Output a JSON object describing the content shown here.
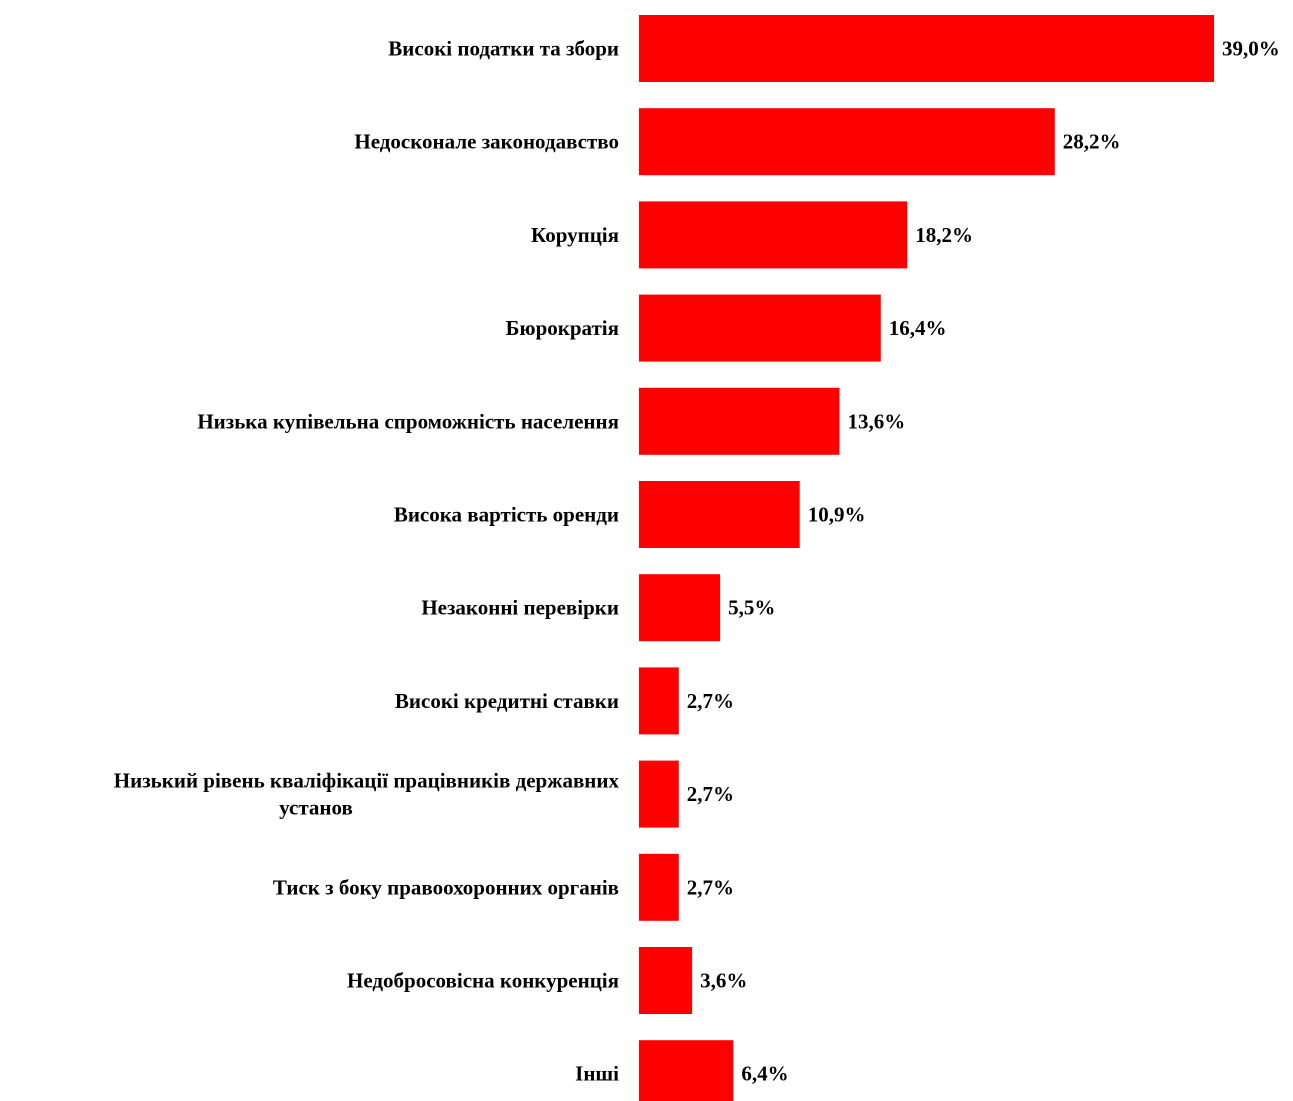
{
  "chart_data": {
    "type": "bar",
    "orientation": "horizontal",
    "categories": [
      "Високі податки та збори",
      "Недосконале законодавство",
      "Корупція",
      "Бюрократія",
      "Низька купівельна спроможність населення",
      "Висока вартість оренди",
      "Незаконні перевірки",
      "Високі кредитні ставки",
      "Низький рівень кваліфікації працівників державних установ",
      "Тиск з боку правоохоронних органів",
      "Недобросовісна конкуренція",
      "Інші"
    ],
    "category_lines": [
      [
        "Високі податки та збори"
      ],
      [
        "Недосконале законодавство"
      ],
      [
        "Корупція"
      ],
      [
        "Бюрократія"
      ],
      [
        "Низька купівельна спроможність населення"
      ],
      [
        "Висока вартість оренди"
      ],
      [
        "Незаконні перевірки"
      ],
      [
        "Високі кредитні ставки"
      ],
      [
        "Низький рівень кваліфікації працівників державних",
        "установ"
      ],
      [
        "Тиск з боку правоохоронних органів"
      ],
      [
        "Недобросовісна конкуренція"
      ],
      [
        "Інші"
      ]
    ],
    "values": [
      39.0,
      28.2,
      18.2,
      16.4,
      13.6,
      10.9,
      5.5,
      2.7,
      2.7,
      2.7,
      3.6,
      6.4
    ],
    "value_labels": [
      "39,0%",
      "28,2%",
      "18,2%",
      "16,4%",
      "13,6%",
      "10,9%",
      "5,5%",
      "2,7%",
      "2,7%",
      "2,7%",
      "3,6%",
      "6,4%"
    ],
    "bar_color": "#ff0000",
    "xlim": [
      0,
      39.0
    ],
    "grid": false,
    "legend": "none",
    "title": "",
    "xlabel": "",
    "ylabel": ""
  }
}
